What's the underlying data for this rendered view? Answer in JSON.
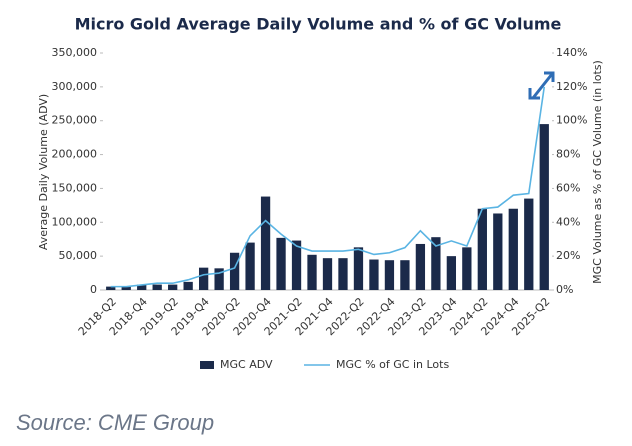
{
  "chart_data": {
    "type": "bar_line",
    "title": "Micro Gold Average Daily Volume and % of GC Volume",
    "y_label": "Average Daily Volume (ADV)",
    "y2_label": "MGC Volume as % of GC Volume (in lots)",
    "categories": [
      "2018-Q2",
      null,
      "2018-Q4",
      null,
      "2019-Q2",
      null,
      "2019-Q4",
      null,
      "2020-Q2",
      null,
      "2020-Q4",
      null,
      "2021-Q2",
      null,
      "2021-Q4",
      null,
      "2022-Q2",
      null,
      "2022-Q4",
      null,
      "2023-Q2",
      null,
      "2023-Q4",
      null,
      "2024-Q2",
      null,
      "2024-Q4",
      null,
      "2025-Q2"
    ],
    "series": [
      {
        "name": "MGC ADV",
        "type": "bar",
        "color": "#1b2a4a",
        "values": [
          5000,
          5000,
          8000,
          8000,
          8000,
          12000,
          33000,
          32000,
          55000,
          70000,
          138000,
          77000,
          73000,
          52000,
          47000,
          47000,
          63000,
          45000,
          44000,
          44000,
          68000,
          78000,
          50000,
          63000,
          120000,
          113000,
          120000,
          135000,
          245000
        ]
      },
      {
        "name": "MGC % of GC in Lots",
        "type": "line",
        "axis": "y2",
        "color": "#5ab4e3",
        "values": [
          2,
          2,
          3,
          4,
          4,
          6,
          9,
          10,
          13,
          32,
          41,
          33,
          26,
          23,
          23,
          23,
          24,
          21,
          22,
          25,
          35,
          26,
          29,
          26,
          48,
          49,
          56,
          57,
          120
        ]
      }
    ],
    "ylim": [
      0,
      350000
    ],
    "yticks": [
      0,
      {
        "value": 50000,
        "label": "50,000"
      },
      {
        "value": 100000,
        "label": "100,000"
      },
      {
        "value": 150000,
        "label": "150,000"
      },
      {
        "value": 200000,
        "label": "200,000"
      },
      {
        "value": 250000,
        "label": "250,000"
      },
      {
        "value": 300000,
        "label": "300,000"
      },
      {
        "value": 350000,
        "label": "350,000"
      }
    ],
    "y2lim": [
      0,
      140
    ],
    "y2ticks": [
      {
        "value": 0,
        "label": "0%"
      },
      {
        "value": 20,
        "label": "20%"
      },
      {
        "value": 40,
        "label": "40%"
      },
      {
        "value": 60,
        "label": "60%"
      },
      {
        "value": 80,
        "label": "80%"
      },
      {
        "value": 100,
        "label": "100%"
      },
      {
        "value": 120,
        "label": "120%"
      },
      {
        "value": 140,
        "label": "140%"
      }
    ],
    "legend": "bottom",
    "source": "Source: CME Group"
  }
}
